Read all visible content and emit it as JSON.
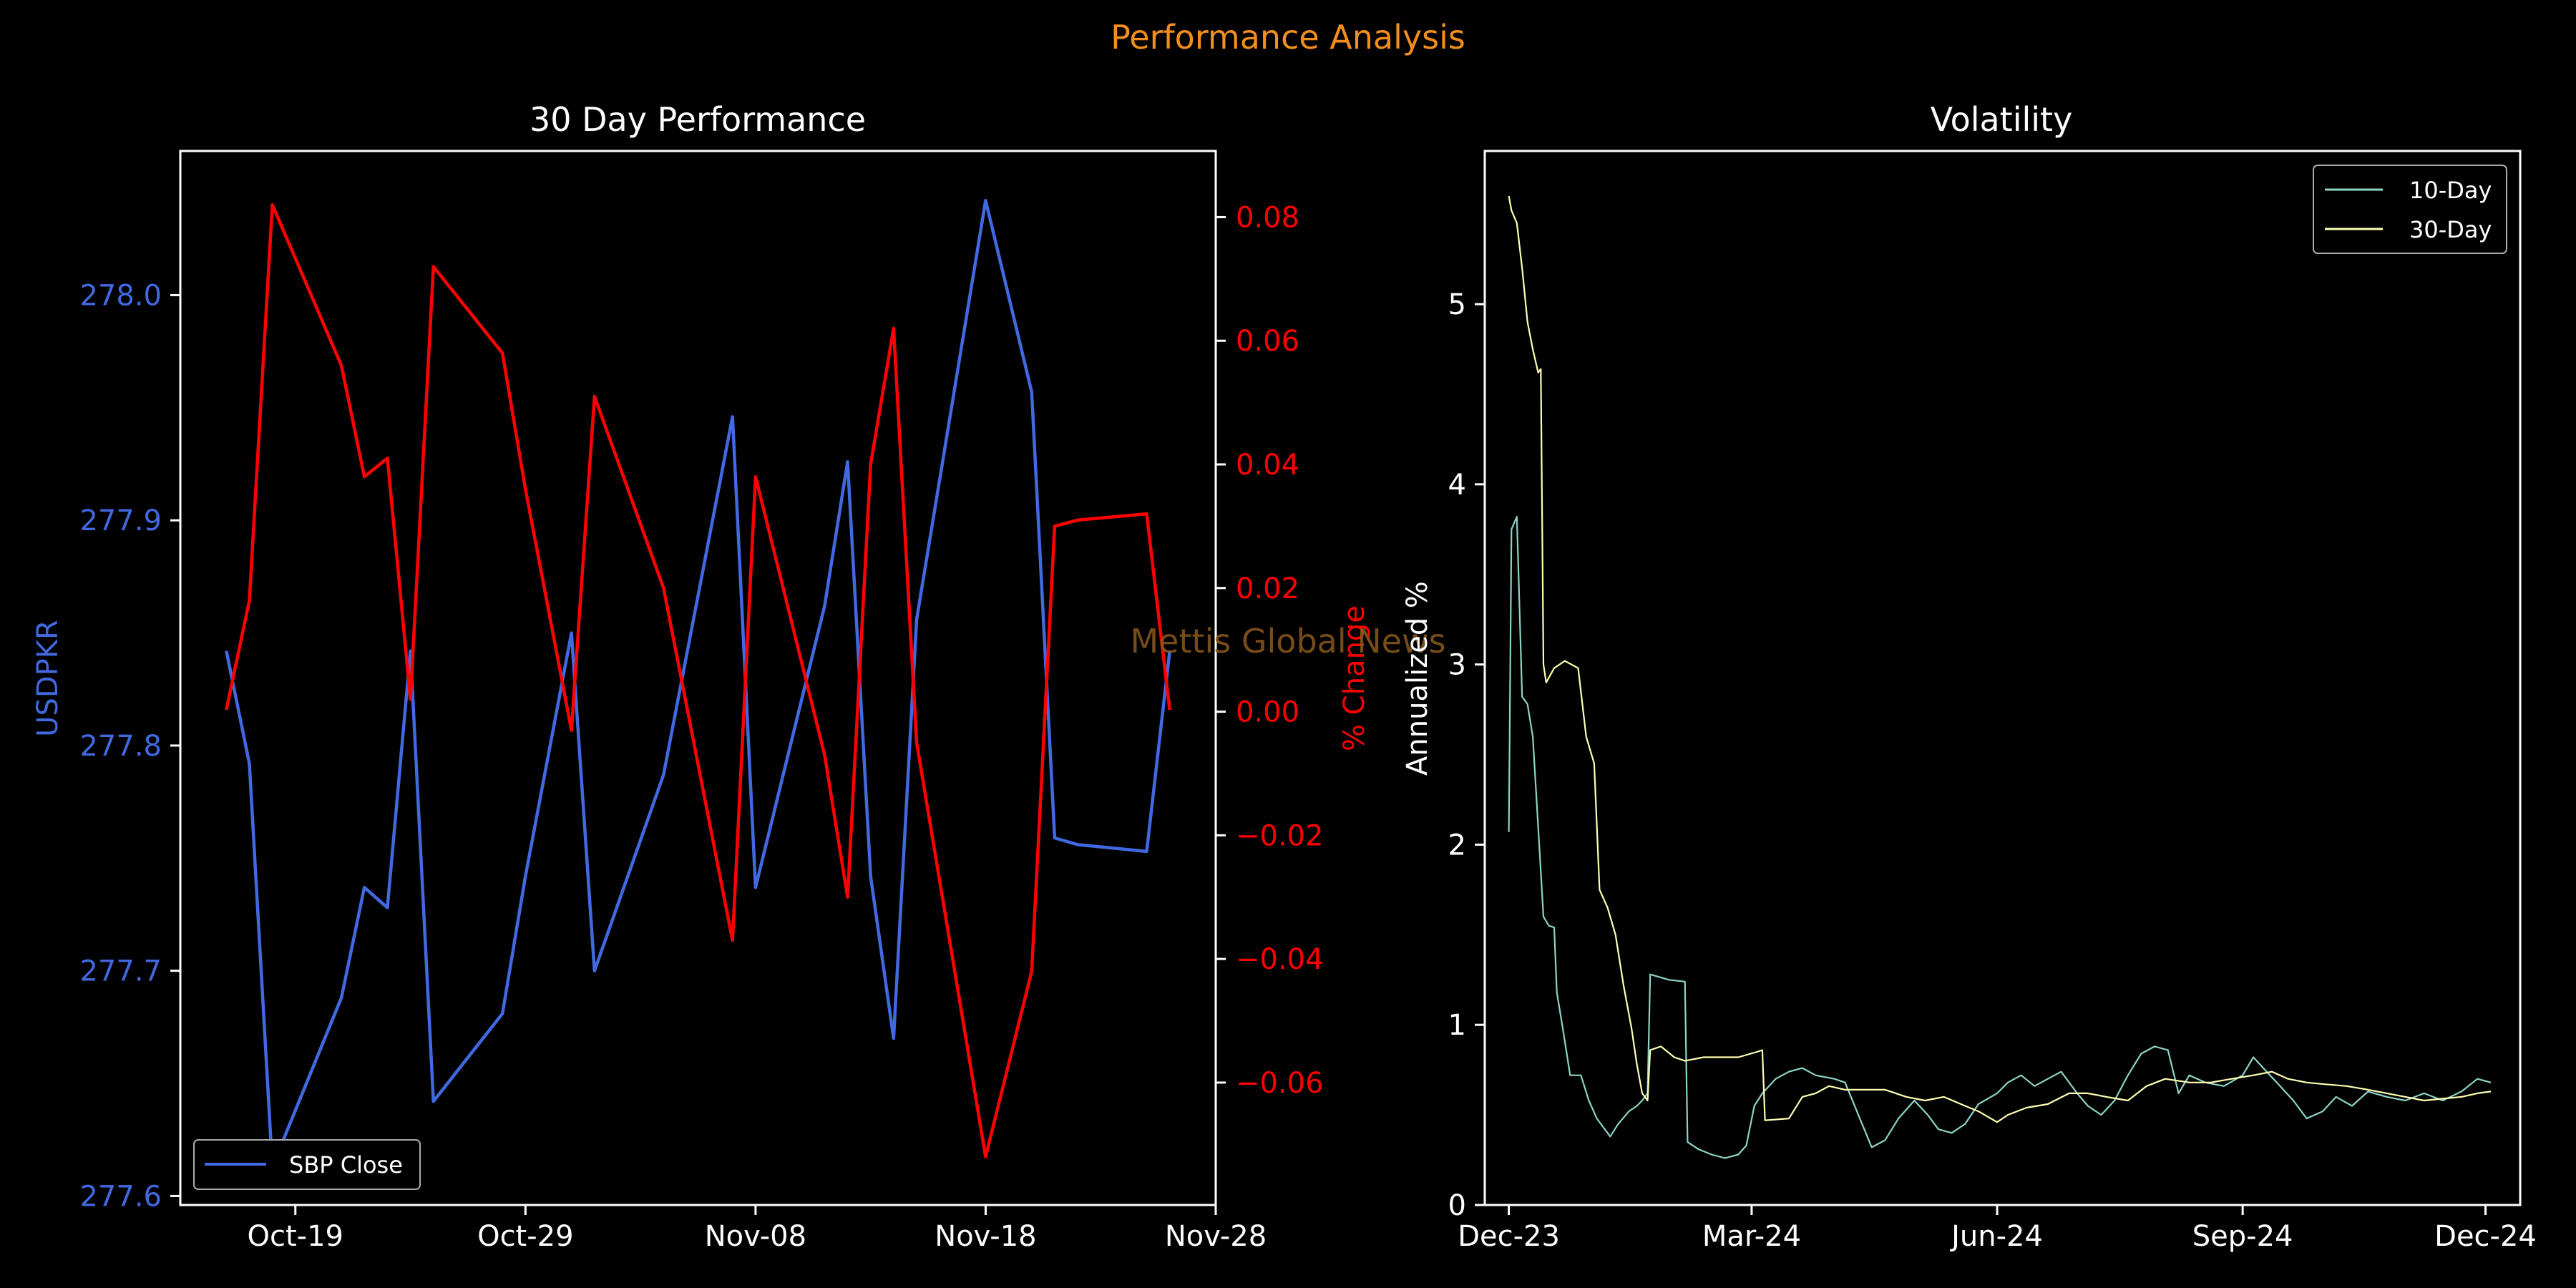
{
  "page": {
    "suptitle": "Performance Analysis",
    "watermark": "Mettis Global News"
  },
  "colors": {
    "background": "#000000",
    "suptitle": "#F28E1C",
    "close": "#4169E1",
    "pct": "#FF0000",
    "vol10": "#8DD3C7",
    "vol30": "#FFFFB3",
    "watermark": "#8B5A1E",
    "axis": "#FFFFFF"
  },
  "chart_data": [
    {
      "type": "line",
      "title": "30 Day Performance",
      "xlabel": "",
      "ylabel": "USDPKR",
      "y2label": "% Change",
      "xlim": [
        "2024-10-14",
        "2024-11-28"
      ],
      "ylim": [
        277.596,
        278.064
      ],
      "y2lim": [
        -0.0798,
        0.0907
      ],
      "x_ticks": [
        "Oct-19",
        "Oct-29",
        "Nov-08",
        "Nov-18",
        "Nov-28"
      ],
      "y_ticks": [
        "277.6",
        "277.7",
        "277.8",
        "277.9",
        "278.0"
      ],
      "y2_ticks": [
        "−0.06",
        "−0.04",
        "−0.02",
        "0.00",
        "0.02",
        "0.04",
        "0.06",
        "0.08"
      ],
      "grid": false,
      "legend": {
        "position": "lower-left",
        "entries": [
          "SBP Close"
        ]
      },
      "series": [
        {
          "name": "SBP Close",
          "axis": "left",
          "x": [
            "2024-10-16",
            "2024-10-17",
            "2024-10-18",
            "2024-10-21",
            "2024-10-22",
            "2024-10-23",
            "2024-10-24",
            "2024-10-25",
            "2024-10-28",
            "2024-10-29",
            "2024-10-31",
            "2024-11-01",
            "2024-11-04",
            "2024-11-07",
            "2024-11-08",
            "2024-11-11",
            "2024-11-12",
            "2024-11-13",
            "2024-11-14",
            "2024-11-15",
            "2024-11-18",
            "2024-11-20",
            "2024-11-21",
            "2024-11-22",
            "2024-11-25",
            "2024-11-26"
          ],
          "values": [
            277.842,
            277.792,
            277.613,
            277.688,
            277.737,
            277.728,
            277.842,
            277.642,
            277.681,
            277.742,
            277.85,
            277.7,
            277.787,
            277.946,
            277.737,
            277.862,
            277.926,
            277.742,
            277.67,
            277.856,
            278.042,
            277.957,
            277.759,
            277.756,
            277.753,
            277.842
          ]
        },
        {
          "name": "% Change",
          "axis": "right",
          "x": [
            "2024-10-16",
            "2024-10-17",
            "2024-10-18",
            "2024-10-21",
            "2024-10-22",
            "2024-10-23",
            "2024-10-24",
            "2024-10-25",
            "2024-10-28",
            "2024-10-29",
            "2024-10-31",
            "2024-11-01",
            "2024-11-04",
            "2024-11-07",
            "2024-11-08",
            "2024-11-11",
            "2024-11-12",
            "2024-11-13",
            "2024-11-14",
            "2024-11-15",
            "2024-11-18",
            "2024-11-20",
            "2024-11-21",
            "2024-11-22",
            "2024-11-25",
            "2024-11-26"
          ],
          "values": [
            0.0003,
            0.018,
            0.082,
            0.056,
            0.038,
            0.041,
            0.002,
            0.072,
            0.058,
            0.036,
            -0.003,
            0.051,
            0.02,
            -0.037,
            0.038,
            -0.007,
            -0.03,
            0.04,
            0.062,
            -0.005,
            -0.072,
            -0.042,
            0.03,
            0.031,
            0.032,
            0.0003
          ]
        }
      ]
    },
    {
      "type": "line",
      "title": "Volatility",
      "xlabel": "",
      "ylabel": "Annualized %",
      "xlim": [
        "2023-11-22",
        "2024-12-14"
      ],
      "ylim": [
        0,
        5.85
      ],
      "x_ticks": [
        "Dec-23",
        "Mar-24",
        "Jun-24",
        "Sep-24",
        "Dec-24"
      ],
      "y_ticks": [
        "0",
        "1",
        "2",
        "3",
        "4",
        "5"
      ],
      "grid": false,
      "legend": {
        "position": "top-right",
        "entries": [
          "10-Day",
          "30-Day"
        ]
      },
      "series": [
        {
          "name": "10-Day",
          "points": [
            [
              "2023-12-01",
              2.07
            ],
            [
              "2023-12-02",
              3.75
            ],
            [
              "2023-12-04",
              3.82
            ],
            [
              "2023-12-06",
              2.82
            ],
            [
              "2023-12-08",
              2.78
            ],
            [
              "2023-12-10",
              2.6
            ],
            [
              "2023-12-12",
              2.1
            ],
            [
              "2023-12-14",
              1.6
            ],
            [
              "2023-12-16",
              1.55
            ],
            [
              "2023-12-18",
              1.54
            ],
            [
              "2023-12-19",
              1.18
            ],
            [
              "2023-12-21",
              1.0
            ],
            [
              "2023-12-24",
              0.72
            ],
            [
              "2023-12-28",
              0.72
            ],
            [
              "2023-12-31",
              0.58
            ],
            [
              "2024-01-03",
              0.48
            ],
            [
              "2024-01-06",
              0.42
            ],
            [
              "2024-01-08",
              0.38
            ],
            [
              "2024-01-11",
              0.45
            ],
            [
              "2024-01-15",
              0.52
            ],
            [
              "2024-01-18",
              0.55
            ],
            [
              "2024-01-20",
              0.58
            ],
            [
              "2024-01-22",
              0.62
            ],
            [
              "2024-01-23",
              1.28
            ],
            [
              "2024-01-30",
              1.25
            ],
            [
              "2024-02-05",
              1.24
            ],
            [
              "2024-02-06",
              0.35
            ],
            [
              "2024-02-10",
              0.31
            ],
            [
              "2024-02-15",
              0.28
            ],
            [
              "2024-02-20",
              0.26
            ],
            [
              "2024-02-25",
              0.28
            ],
            [
              "2024-02-28",
              0.33
            ],
            [
              "2024-03-02",
              0.55
            ],
            [
              "2024-03-05",
              0.62
            ],
            [
              "2024-03-10",
              0.7
            ],
            [
              "2024-03-15",
              0.74
            ],
            [
              "2024-03-20",
              0.76
            ],
            [
              "2024-03-25",
              0.72
            ],
            [
              "2024-04-01",
              0.7
            ],
            [
              "2024-04-05",
              0.68
            ],
            [
              "2024-04-10",
              0.5
            ],
            [
              "2024-04-15",
              0.32
            ],
            [
              "2024-04-20",
              0.36
            ],
            [
              "2024-04-25",
              0.48
            ],
            [
              "2024-05-01",
              0.58
            ],
            [
              "2024-05-06",
              0.5
            ],
            [
              "2024-05-10",
              0.42
            ],
            [
              "2024-05-15",
              0.4
            ],
            [
              "2024-05-20",
              0.45
            ],
            [
              "2024-05-25",
              0.56
            ],
            [
              "2024-06-01",
              0.62
            ],
            [
              "2024-06-05",
              0.68
            ],
            [
              "2024-06-10",
              0.72
            ],
            [
              "2024-06-15",
              0.66
            ],
            [
              "2024-06-20",
              0.7
            ],
            [
              "2024-06-25",
              0.74
            ],
            [
              "2024-07-01",
              0.62
            ],
            [
              "2024-07-05",
              0.55
            ],
            [
              "2024-07-10",
              0.5
            ],
            [
              "2024-07-15",
              0.58
            ],
            [
              "2024-07-20",
              0.72
            ],
            [
              "2024-07-25",
              0.84
            ],
            [
              "2024-07-30",
              0.88
            ],
            [
              "2024-08-04",
              0.86
            ],
            [
              "2024-08-08",
              0.62
            ],
            [
              "2024-08-12",
              0.72
            ],
            [
              "2024-08-18",
              0.68
            ],
            [
              "2024-08-25",
              0.66
            ],
            [
              "2024-09-01",
              0.72
            ],
            [
              "2024-09-05",
              0.82
            ],
            [
              "2024-09-10",
              0.74
            ],
            [
              "2024-09-15",
              0.66
            ],
            [
              "2024-09-20",
              0.58
            ],
            [
              "2024-09-25",
              0.48
            ],
            [
              "2024-10-01",
              0.52
            ],
            [
              "2024-10-06",
              0.6
            ],
            [
              "2024-10-12",
              0.55
            ],
            [
              "2024-10-18",
              0.63
            ],
            [
              "2024-10-25",
              0.6
            ],
            [
              "2024-11-01",
              0.58
            ],
            [
              "2024-11-08",
              0.62
            ],
            [
              "2024-11-15",
              0.58
            ],
            [
              "2024-11-22",
              0.63
            ],
            [
              "2024-11-28",
              0.7
            ],
            [
              "2024-12-03",
              0.68
            ]
          ]
        },
        {
          "name": "30-Day",
          "points": [
            [
              "2023-12-01",
              5.6
            ],
            [
              "2023-12-02",
              5.52
            ],
            [
              "2023-12-04",
              5.45
            ],
            [
              "2023-12-06",
              5.2
            ],
            [
              "2023-12-08",
              4.9
            ],
            [
              "2023-12-10",
              4.75
            ],
            [
              "2023-12-12",
              4.62
            ],
            [
              "2023-12-13",
              4.64
            ],
            [
              "2023-12-14",
              3.0
            ],
            [
              "2023-12-15",
              2.9
            ],
            [
              "2023-12-18",
              2.98
            ],
            [
              "2023-12-22",
              3.02
            ],
            [
              "2023-12-27",
              2.98
            ],
            [
              "2023-12-30",
              2.6
            ],
            [
              "2024-01-02",
              2.45
            ],
            [
              "2024-01-04",
              1.75
            ],
            [
              "2024-01-07",
              1.65
            ],
            [
              "2024-01-10",
              1.5
            ],
            [
              "2024-01-13",
              1.22
            ],
            [
              "2024-01-16",
              0.98
            ],
            [
              "2024-01-18",
              0.78
            ],
            [
              "2024-01-20",
              0.62
            ],
            [
              "2024-01-22",
              0.58
            ],
            [
              "2024-01-23",
              0.86
            ],
            [
              "2024-01-27",
              0.88
            ],
            [
              "2024-02-01",
              0.82
            ],
            [
              "2024-02-05",
              0.8
            ],
            [
              "2024-02-12",
              0.82
            ],
            [
              "2024-02-19",
              0.82
            ],
            [
              "2024-02-25",
              0.82
            ],
            [
              "2024-03-03",
              0.85
            ],
            [
              "2024-03-05",
              0.86
            ],
            [
              "2024-03-06",
              0.47
            ],
            [
              "2024-03-15",
              0.48
            ],
            [
              "2024-03-20",
              0.6
            ],
            [
              "2024-03-25",
              0.62
            ],
            [
              "2024-03-30",
              0.66
            ],
            [
              "2024-04-05",
              0.64
            ],
            [
              "2024-04-12",
              0.64
            ],
            [
              "2024-04-20",
              0.64
            ],
            [
              "2024-04-28",
              0.6
            ],
            [
              "2024-05-05",
              0.58
            ],
            [
              "2024-05-12",
              0.6
            ],
            [
              "2024-05-20",
              0.55
            ],
            [
              "2024-05-25",
              0.52
            ],
            [
              "2024-06-01",
              0.46
            ],
            [
              "2024-06-05",
              0.5
            ],
            [
              "2024-06-12",
              0.54
            ],
            [
              "2024-06-20",
              0.56
            ],
            [
              "2024-06-28",
              0.62
            ],
            [
              "2024-07-05",
              0.62
            ],
            [
              "2024-07-12",
              0.6
            ],
            [
              "2024-07-20",
              0.58
            ],
            [
              "2024-07-27",
              0.66
            ],
            [
              "2024-08-03",
              0.7
            ],
            [
              "2024-08-12",
              0.68
            ],
            [
              "2024-08-20",
              0.68
            ],
            [
              "2024-08-28",
              0.7
            ],
            [
              "2024-09-05",
              0.72
            ],
            [
              "2024-09-12",
              0.74
            ],
            [
              "2024-09-18",
              0.7
            ],
            [
              "2024-09-25",
              0.68
            ],
            [
              "2024-10-02",
              0.67
            ],
            [
              "2024-10-10",
              0.66
            ],
            [
              "2024-10-18",
              0.64
            ],
            [
              "2024-10-25",
              0.62
            ],
            [
              "2024-11-01",
              0.6
            ],
            [
              "2024-11-08",
              0.58
            ],
            [
              "2024-11-15",
              0.59
            ],
            [
              "2024-11-22",
              0.6
            ],
            [
              "2024-11-28",
              0.62
            ],
            [
              "2024-12-03",
              0.63
            ]
          ]
        }
      ]
    }
  ]
}
